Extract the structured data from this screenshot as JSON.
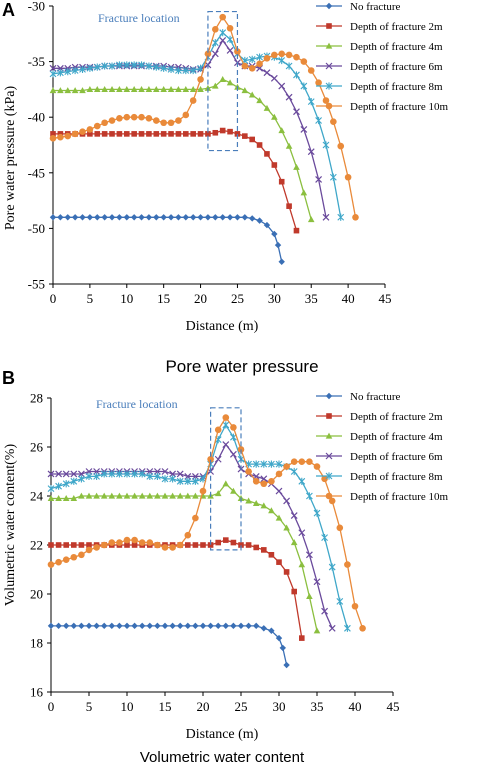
{
  "figure": {
    "caption_top": "Pore water pressure",
    "caption_bottom": "Volumetric water content"
  },
  "chart_data": [
    {
      "panel": "A",
      "type": "line",
      "title": "",
      "xlabel": "Distance (m)",
      "ylabel": "Pore water pressure (kPa)",
      "xlim": [
        0,
        45
      ],
      "ylim": [
        -55,
        -30
      ],
      "xticks": [
        0,
        5,
        10,
        15,
        20,
        25,
        30,
        35,
        40,
        45
      ],
      "yticks": [
        -55,
        -50,
        -45,
        -40,
        -35,
        -30
      ],
      "annotation": "Fracture location",
      "annotation_box": {
        "x": [
          21,
          25
        ],
        "y": [
          -43,
          -30.5
        ]
      },
      "grid": false,
      "legend_position": "right",
      "series": [
        {
          "name": "No fracture",
          "color": "#3a6fb5",
          "marker": "diamond",
          "x": [
            0,
            1,
            2,
            3,
            4,
            5,
            6,
            7,
            8,
            9,
            10,
            11,
            12,
            13,
            14,
            15,
            16,
            17,
            18,
            19,
            20,
            21,
            22,
            23,
            24,
            25,
            26,
            27,
            28,
            29,
            30,
            30.5,
            31
          ],
          "y": [
            -49,
            -49,
            -49,
            -49,
            -49,
            -49,
            -49,
            -49,
            -49,
            -49,
            -49,
            -49,
            -49,
            -49,
            -49,
            -49,
            -49,
            -49,
            -49,
            -49,
            -49,
            -49,
            -49,
            -49,
            -49,
            -49,
            -49,
            -49.1,
            -49.3,
            -49.7,
            -50.5,
            -51.5,
            -53
          ]
        },
        {
          "name": "Depth of fracture 2m",
          "color": "#c0392b",
          "marker": "square",
          "x": [
            0,
            1,
            2,
            3,
            4,
            5,
            6,
            7,
            8,
            9,
            10,
            11,
            12,
            13,
            14,
            15,
            16,
            17,
            18,
            19,
            20,
            21,
            22,
            23,
            24,
            25,
            26,
            27,
            28,
            29,
            30,
            31,
            32,
            33
          ],
          "y": [
            -41.5,
            -41.5,
            -41.5,
            -41.5,
            -41.5,
            -41.5,
            -41.5,
            -41.5,
            -41.5,
            -41.5,
            -41.5,
            -41.5,
            -41.5,
            -41.5,
            -41.5,
            -41.5,
            -41.5,
            -41.5,
            -41.5,
            -41.5,
            -41.5,
            -41.5,
            -41.4,
            -41.2,
            -41.3,
            -41.5,
            -41.7,
            -42,
            -42.5,
            -43.3,
            -44.3,
            -45.8,
            -48,
            -50.2
          ]
        },
        {
          "name": "Depth of fracture 4m",
          "color": "#8bbf3f",
          "marker": "triangle",
          "x": [
            0,
            1,
            2,
            3,
            4,
            5,
            6,
            7,
            8,
            9,
            10,
            11,
            12,
            13,
            14,
            15,
            16,
            17,
            18,
            19,
            20,
            21,
            22,
            23,
            24,
            25,
            26,
            27,
            28,
            29,
            30,
            31,
            32,
            33,
            34,
            35
          ],
          "y": [
            -37.6,
            -37.6,
            -37.6,
            -37.6,
            -37.6,
            -37.5,
            -37.5,
            -37.5,
            -37.5,
            -37.5,
            -37.5,
            -37.5,
            -37.5,
            -37.5,
            -37.5,
            -37.5,
            -37.5,
            -37.5,
            -37.5,
            -37.5,
            -37.5,
            -37.4,
            -37.2,
            -36.6,
            -36.9,
            -37.3,
            -37.6,
            -38,
            -38.5,
            -39.2,
            -40,
            -41.2,
            -42.6,
            -44.5,
            -46.8,
            -49.2
          ]
        },
        {
          "name": "Depth of fracture 6m",
          "color": "#6a4a9c",
          "marker": "x",
          "x": [
            0,
            1,
            2,
            3,
            4,
            5,
            6,
            7,
            8,
            9,
            10,
            11,
            12,
            13,
            14,
            15,
            16,
            17,
            18,
            19,
            20,
            21,
            22,
            23,
            24,
            25,
            26,
            27,
            28,
            29,
            30,
            31,
            32,
            33,
            34,
            35,
            36,
            37
          ],
          "y": [
            -35.6,
            -35.6,
            -35.6,
            -35.5,
            -35.5,
            -35.5,
            -35.5,
            -35.4,
            -35.4,
            -35.4,
            -35.4,
            -35.4,
            -35.4,
            -35.4,
            -35.4,
            -35.4,
            -35.5,
            -35.5,
            -35.6,
            -35.7,
            -35.7,
            -35.3,
            -34.3,
            -33.1,
            -34,
            -35.1,
            -35.4,
            -35.4,
            -35.6,
            -36,
            -36.5,
            -37.2,
            -38.2,
            -39.5,
            -41.1,
            -43.1,
            -45.6,
            -49
          ]
        },
        {
          "name": "Depth of fracture 8m",
          "color": "#3fa7c9",
          "marker": "star",
          "x": [
            0,
            1,
            2,
            3,
            4,
            5,
            6,
            7,
            8,
            9,
            10,
            11,
            12,
            13,
            14,
            15,
            16,
            17,
            18,
            19,
            20,
            21,
            22,
            23,
            24,
            25,
            26,
            27,
            28,
            29,
            30,
            31,
            32,
            33,
            34,
            35,
            36,
            37,
            38,
            39
          ],
          "y": [
            -36.1,
            -36,
            -35.9,
            -35.8,
            -35.7,
            -35.6,
            -35.5,
            -35.4,
            -35.4,
            -35.3,
            -35.3,
            -35.3,
            -35.3,
            -35.4,
            -35.5,
            -35.6,
            -35.7,
            -35.8,
            -35.8,
            -35.8,
            -35.6,
            -34.6,
            -33.3,
            -32.4,
            -33,
            -34.3,
            -34.9,
            -34.8,
            -34.6,
            -34.5,
            -34.6,
            -34.9,
            -35.4,
            -36.2,
            -37.2,
            -38.6,
            -40.3,
            -42.5,
            -45.4,
            -49
          ]
        },
        {
          "name": "Depth of fracture 10m",
          "color": "#e98a3a",
          "marker": "circle",
          "x": [
            0,
            1,
            2,
            3,
            4,
            5,
            6,
            7,
            8,
            9,
            10,
            11,
            12,
            13,
            14,
            15,
            16,
            17,
            18,
            19,
            20,
            21,
            22,
            23,
            24,
            25,
            26,
            27,
            28,
            29,
            30,
            31,
            32,
            33,
            34,
            35,
            36,
            37,
            38,
            39,
            40,
            41
          ],
          "y": [
            -41.9,
            -41.8,
            -41.7,
            -41.5,
            -41.3,
            -41.1,
            -40.8,
            -40.5,
            -40.3,
            -40.1,
            -40,
            -40,
            -40,
            -40.1,
            -40.3,
            -40.5,
            -40.5,
            -40.3,
            -39.8,
            -38.5,
            -36.6,
            -34.3,
            -32.1,
            -31,
            -32,
            -34.1,
            -35.4,
            -35.6,
            -35.2,
            -34.7,
            -34.4,
            -34.3,
            -34.4,
            -34.6,
            -35,
            -35.8,
            -36.9,
            -38.5,
            -40.4,
            -42.6,
            -45.4,
            -49
          ]
        }
      ]
    },
    {
      "panel": "B",
      "type": "line",
      "title": "",
      "xlabel": "Distance (m)",
      "ylabel": "Volumetric water content(%)",
      "xlim": [
        0,
        45
      ],
      "ylim": [
        16,
        28
      ],
      "xticks": [
        0,
        5,
        10,
        15,
        20,
        25,
        30,
        35,
        40,
        45
      ],
      "yticks": [
        16,
        18,
        20,
        22,
        24,
        26,
        28
      ],
      "annotation": "Fracture location",
      "annotation_box": {
        "x": [
          21,
          25
        ],
        "y": [
          21.8,
          27.6
        ]
      },
      "grid": false,
      "legend_position": "right",
      "series": [
        {
          "name": "No fracture",
          "color": "#3a6fb5",
          "marker": "diamond",
          "x": [
            0,
            1,
            2,
            3,
            4,
            5,
            6,
            7,
            8,
            9,
            10,
            11,
            12,
            13,
            14,
            15,
            16,
            17,
            18,
            19,
            20,
            21,
            22,
            23,
            24,
            25,
            26,
            27,
            28,
            29,
            30,
            30.5,
            31
          ],
          "y": [
            18.7,
            18.7,
            18.7,
            18.7,
            18.7,
            18.7,
            18.7,
            18.7,
            18.7,
            18.7,
            18.7,
            18.7,
            18.7,
            18.7,
            18.7,
            18.7,
            18.7,
            18.7,
            18.7,
            18.7,
            18.7,
            18.7,
            18.7,
            18.7,
            18.7,
            18.7,
            18.7,
            18.7,
            18.6,
            18.5,
            18.2,
            17.8,
            17.1
          ]
        },
        {
          "name": "Depth of fracture 2m",
          "color": "#c0392b",
          "marker": "square",
          "x": [
            0,
            1,
            2,
            3,
            4,
            5,
            6,
            7,
            8,
            9,
            10,
            11,
            12,
            13,
            14,
            15,
            16,
            17,
            18,
            19,
            20,
            21,
            22,
            23,
            24,
            25,
            26,
            27,
            28,
            29,
            30,
            31,
            32,
            33
          ],
          "y": [
            22,
            22,
            22,
            22,
            22,
            22,
            22,
            22,
            22,
            22,
            22,
            22,
            22,
            22,
            22,
            22,
            22,
            22,
            22,
            22,
            22,
            22,
            22.1,
            22.2,
            22.1,
            22,
            22,
            21.9,
            21.8,
            21.6,
            21.3,
            20.9,
            20.1,
            18.2
          ]
        },
        {
          "name": "Depth of fracture 4m",
          "color": "#8bbf3f",
          "marker": "triangle",
          "x": [
            0,
            1,
            2,
            3,
            4,
            5,
            6,
            7,
            8,
            9,
            10,
            11,
            12,
            13,
            14,
            15,
            16,
            17,
            18,
            19,
            20,
            21,
            22,
            23,
            24,
            25,
            26,
            27,
            28,
            29,
            30,
            31,
            32,
            33,
            34,
            35
          ],
          "y": [
            23.9,
            23.9,
            23.9,
            23.9,
            24,
            24,
            24,
            24,
            24,
            24,
            24,
            24,
            24,
            24,
            24,
            24,
            24,
            24,
            24,
            24,
            24,
            24,
            24.1,
            24.5,
            24.2,
            23.9,
            23.8,
            23.7,
            23.6,
            23.4,
            23.1,
            22.7,
            22.1,
            21.2,
            19.9,
            18.5
          ]
        },
        {
          "name": "Depth of fracture 6m",
          "color": "#6a4a9c",
          "marker": "x",
          "x": [
            0,
            1,
            2,
            3,
            4,
            5,
            6,
            7,
            8,
            9,
            10,
            11,
            12,
            13,
            14,
            15,
            16,
            17,
            18,
            19,
            20,
            21,
            22,
            23,
            24,
            25,
            26,
            27,
            28,
            29,
            30,
            31,
            32,
            33,
            34,
            35,
            36,
            37
          ],
          "y": [
            24.9,
            24.9,
            24.9,
            24.9,
            24.9,
            25,
            25,
            25,
            25,
            25,
            25,
            25,
            25,
            25,
            25,
            25,
            24.9,
            24.9,
            24.8,
            24.8,
            24.8,
            25,
            25.5,
            26.1,
            25.7,
            25.1,
            24.9,
            24.8,
            24.7,
            24.5,
            24.2,
            23.8,
            23.2,
            22.5,
            21.6,
            20.5,
            19.3,
            18.6
          ]
        },
        {
          "name": "Depth of fracture 8m",
          "color": "#3fa7c9",
          "marker": "star",
          "x": [
            0,
            1,
            2,
            3,
            4,
            5,
            6,
            7,
            8,
            9,
            10,
            11,
            12,
            13,
            14,
            15,
            16,
            17,
            18,
            19,
            20,
            21,
            22,
            23,
            24,
            25,
            26,
            27,
            28,
            29,
            30,
            31,
            32,
            33,
            34,
            35,
            36,
            37,
            38,
            39
          ],
          "y": [
            24.3,
            24.4,
            24.5,
            24.6,
            24.7,
            24.8,
            24.8,
            24.9,
            24.9,
            24.9,
            24.9,
            24.9,
            24.9,
            24.8,
            24.8,
            24.7,
            24.7,
            24.6,
            24.6,
            24.6,
            24.7,
            25.3,
            26.3,
            26.9,
            26.4,
            25.5,
            25.3,
            25.3,
            25.3,
            25.3,
            25.3,
            25.2,
            25,
            24.6,
            24,
            23.3,
            22.3,
            21.1,
            19.7,
            18.6
          ]
        },
        {
          "name": "Depth of fracture 10m",
          "color": "#e98a3a",
          "marker": "circle",
          "x": [
            0,
            1,
            2,
            3,
            4,
            5,
            6,
            7,
            8,
            9,
            10,
            11,
            12,
            13,
            14,
            15,
            16,
            17,
            18,
            19,
            20,
            21,
            22,
            23,
            24,
            25,
            26,
            27,
            28,
            29,
            30,
            31,
            32,
            33,
            34,
            35,
            36,
            37,
            38,
            39,
            40,
            41
          ],
          "y": [
            21.2,
            21.3,
            21.4,
            21.5,
            21.6,
            21.8,
            21.9,
            22,
            22.1,
            22.1,
            22.2,
            22.2,
            22.1,
            22.1,
            22,
            21.9,
            21.9,
            22,
            22.4,
            23.1,
            24.2,
            25.5,
            26.7,
            27.2,
            26.8,
            25.9,
            25,
            24.6,
            24.5,
            24.6,
            24.9,
            25.2,
            25.4,
            25.4,
            25.4,
            25.2,
            24.7,
            23.8,
            22.7,
            21.2,
            19.5,
            18.6
          ]
        }
      ]
    }
  ]
}
